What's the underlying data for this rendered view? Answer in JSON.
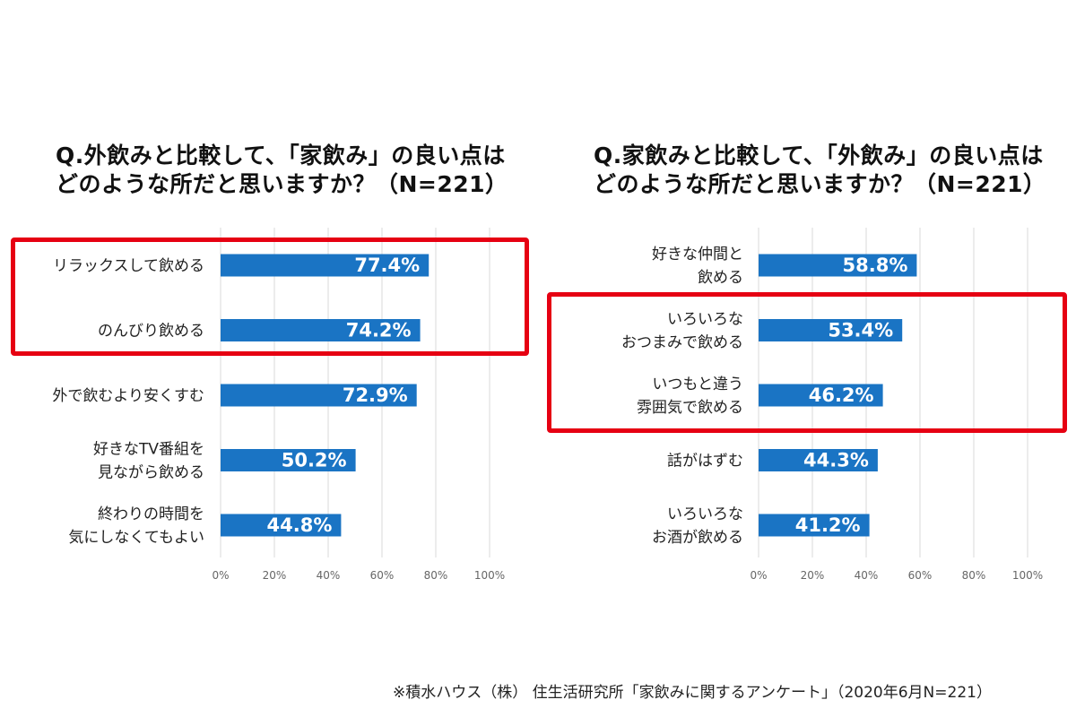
{
  "colors": {
    "bar": "#1a74c4",
    "highlight": "#e60012",
    "grid": "#d9d9d9",
    "value_text": "#ffffff"
  },
  "footnote": "※積水ハウス（株） 住生活研究所「家飲みに関するアンケート」（2020年6月N=221）",
  "chart_data": [
    {
      "type": "bar",
      "orientation": "horizontal",
      "title_lines": [
        "Q.外飲みと比較して、「家飲み」の良い点は",
        "どのような所だと思いますか？（N=221）"
      ],
      "categories": [
        [
          "リラックスして飲める"
        ],
        [
          "のんびり飲める"
        ],
        [
          "外で飲むより安くすむ"
        ],
        [
          "好きなTV番組を",
          "見ながら飲める"
        ],
        [
          "終わりの時間を",
          "気にしなくてもよい"
        ]
      ],
      "values": [
        77.4,
        74.2,
        72.9,
        50.2,
        44.8
      ],
      "value_labels": [
        "77.4%",
        "74.2%",
        "72.9%",
        "50.2%",
        "44.8%"
      ],
      "xlim": [
        0,
        100
      ],
      "ticks": [
        "0%",
        "20%",
        "40%",
        "60%",
        "80%",
        "100%"
      ],
      "grid": true,
      "highlighted": [
        0,
        1
      ]
    },
    {
      "type": "bar",
      "orientation": "horizontal",
      "title_lines": [
        "Q.家飲みと比較して、「外飲み」の良い点は",
        "どのような所だと思いますか？（N=221）"
      ],
      "categories": [
        [
          "好きな仲間と",
          "飲める"
        ],
        [
          "いろいろな",
          "おつまみで飲める"
        ],
        [
          "いつもと違う",
          "雰囲気で飲める"
        ],
        [
          "話がはずむ"
        ],
        [
          "いろいろな",
          "お酒が飲める"
        ]
      ],
      "values": [
        58.8,
        53.4,
        46.2,
        44.3,
        41.2
      ],
      "value_labels": [
        "58.8%",
        "53.4%",
        "46.2%",
        "44.3%",
        "41.2%"
      ],
      "xlim": [
        0,
        100
      ],
      "ticks": [
        "0%",
        "20%",
        "40%",
        "60%",
        "80%",
        "100%"
      ],
      "grid": true,
      "highlighted": [
        1,
        2
      ]
    }
  ]
}
